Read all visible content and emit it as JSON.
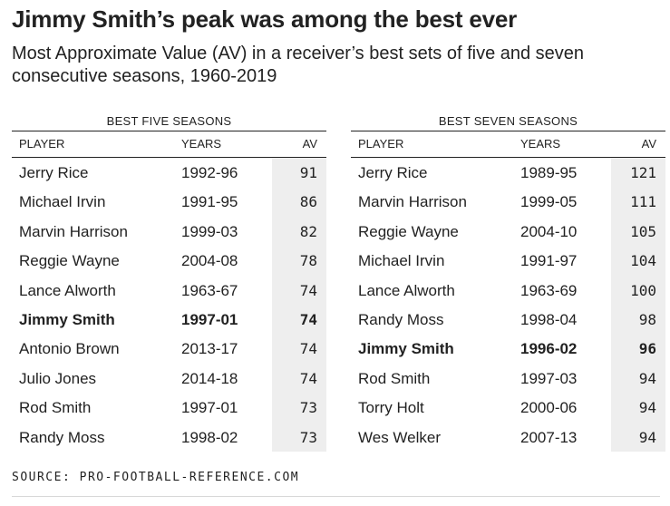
{
  "title": "Jimmy Smith’s peak was among the best ever",
  "subtitle": "Most Approximate Value (AV) in a receiver’s best sets of five and seven consecutive seasons, 1960-2019",
  "headers": {
    "player": "PLAYER",
    "years": "YEARS",
    "av": "AV"
  },
  "tables": [
    {
      "title": "BEST FIVE SEASONS",
      "rows": [
        {
          "player": "Jerry Rice",
          "years": "1992-96",
          "av": "91"
        },
        {
          "player": "Michael Irvin",
          "years": "1991-95",
          "av": "86"
        },
        {
          "player": "Marvin Harrison",
          "years": "1999-03",
          "av": "82"
        },
        {
          "player": "Reggie Wayne",
          "years": "2004-08",
          "av": "78"
        },
        {
          "player": "Lance Alworth",
          "years": "1963-67",
          "av": "74"
        },
        {
          "player": "Jimmy Smith",
          "years": "1997-01",
          "av": "74",
          "highlight": true
        },
        {
          "player": "Antonio Brown",
          "years": "2013-17",
          "av": "74"
        },
        {
          "player": "Julio Jones",
          "years": "2014-18",
          "av": "74"
        },
        {
          "player": "Rod Smith",
          "years": "1997-01",
          "av": "73"
        },
        {
          "player": "Randy Moss",
          "years": "1998-02",
          "av": "73"
        }
      ]
    },
    {
      "title": "BEST SEVEN SEASONS",
      "rows": [
        {
          "player": "Jerry Rice",
          "years": "1989-95",
          "av": "121"
        },
        {
          "player": "Marvin Harrison",
          "years": "1999-05",
          "av": "111"
        },
        {
          "player": "Reggie Wayne",
          "years": "2004-10",
          "av": "105"
        },
        {
          "player": "Michael Irvin",
          "years": "1991-97",
          "av": "104"
        },
        {
          "player": "Lance Alworth",
          "years": "1963-69",
          "av": "100"
        },
        {
          "player": "Randy Moss",
          "years": "1998-04",
          "av": "98"
        },
        {
          "player": "Jimmy Smith",
          "years": "1996-02",
          "av": "96",
          "highlight": true
        },
        {
          "player": "Rod Smith",
          "years": "1997-03",
          "av": "94"
        },
        {
          "player": "Torry Holt",
          "years": "2000-06",
          "av": "94"
        },
        {
          "player": "Wes Welker",
          "years": "2007-13",
          "av": "94"
        }
      ]
    }
  ],
  "source": "SOURCE: PRO-FOOTBALL-REFERENCE.COM"
}
